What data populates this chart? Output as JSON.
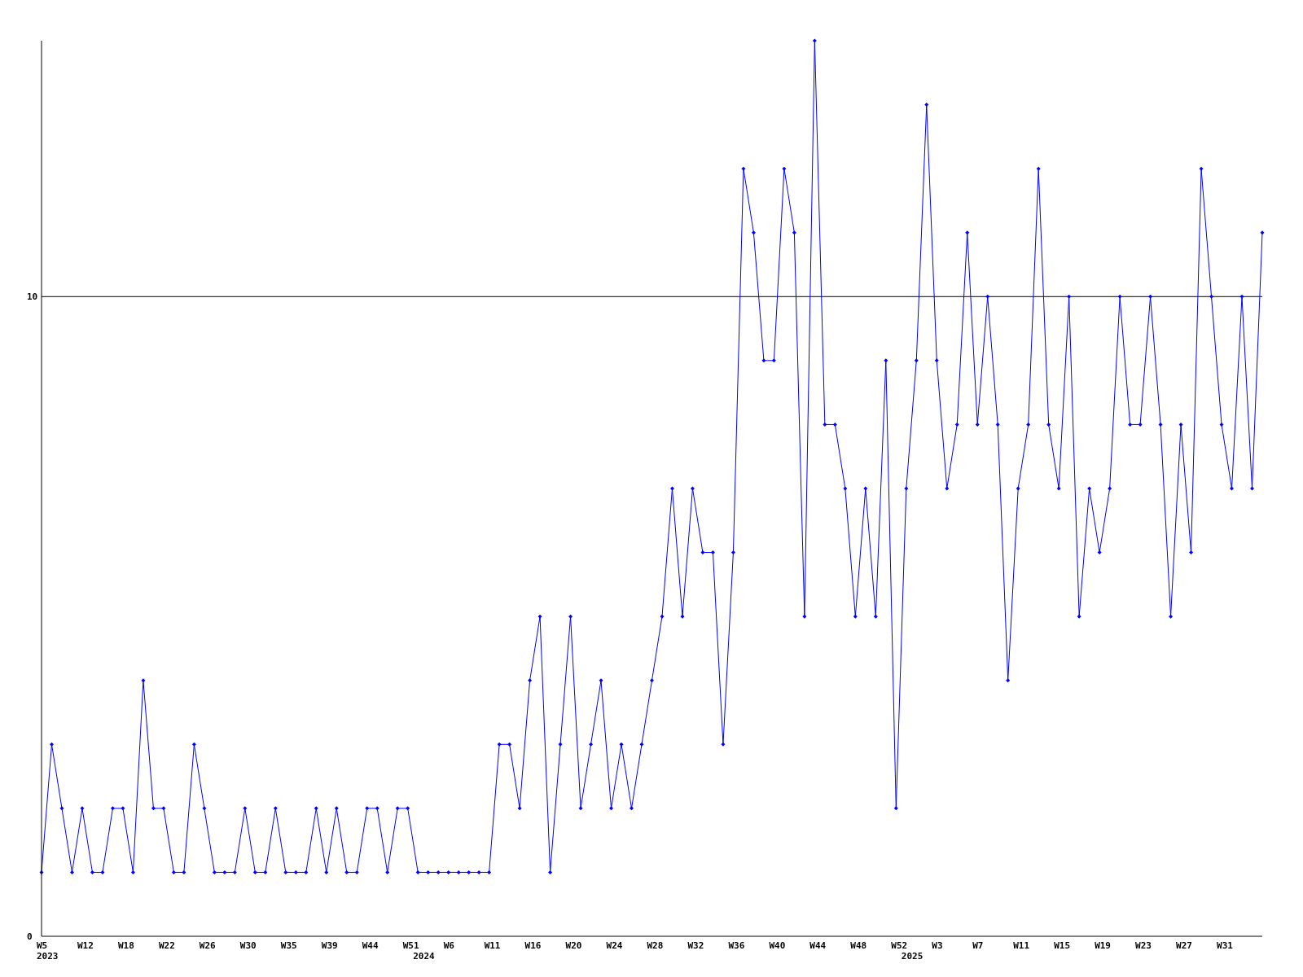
{
  "chart_data": {
    "type": "line",
    "categories": [
      "W5\n2023",
      null,
      null,
      null,
      "W12",
      null,
      null,
      null,
      "W18",
      null,
      null,
      null,
      "W22",
      null,
      null,
      null,
      "W26",
      null,
      null,
      null,
      "W30",
      null,
      null,
      null,
      "W35",
      null,
      null,
      null,
      "W39",
      null,
      null,
      null,
      "W44",
      null,
      null,
      null,
      "W51",
      "\n2024",
      null,
      null,
      "W6",
      null,
      null,
      null,
      "W11",
      null,
      null,
      null,
      "W16",
      null,
      null,
      null,
      "W20",
      null,
      null,
      null,
      "W24",
      null,
      null,
      null,
      "W28",
      null,
      null,
      null,
      "W32",
      null,
      null,
      null,
      "W36",
      null,
      null,
      null,
      "W40",
      null,
      null,
      null,
      "W44",
      null,
      null,
      null,
      "W48",
      null,
      null,
      null,
      "W52",
      "\n2025",
      null,
      null,
      "W3",
      null,
      null,
      null,
      "W7",
      null,
      null,
      null,
      "W11",
      null,
      null,
      null,
      "W15",
      null,
      null,
      null,
      "W19",
      null,
      null,
      null,
      "W23",
      null,
      null,
      null,
      "W27",
      null,
      null,
      null,
      "W31",
      null,
      null,
      null,
      null
    ],
    "series": [
      {
        "color": "#0000ff",
        "values": [
          1,
          3,
          2,
          1,
          2,
          1,
          1,
          2,
          2,
          1,
          4,
          2,
          2,
          1,
          1,
          3,
          2,
          1,
          1,
          1,
          2,
          1,
          1,
          2,
          1,
          1,
          1,
          2,
          1,
          2,
          1,
          1,
          2,
          2,
          1,
          2,
          2,
          1,
          1,
          1,
          1,
          1,
          1,
          1,
          1,
          3,
          3,
          2,
          4,
          5,
          1,
          3,
          5,
          2,
          3,
          4,
          2,
          3,
          2,
          3,
          4,
          5,
          7,
          5,
          7,
          6,
          6,
          3,
          6,
          12,
          11,
          9,
          9,
          12,
          11,
          5,
          14,
          8,
          8,
          7,
          5,
          7,
          5,
          9,
          2,
          7,
          9,
          13,
          9,
          7,
          8,
          11,
          8,
          10,
          8,
          4,
          7,
          8,
          12,
          8,
          7,
          10,
          5,
          7,
          6,
          7,
          10,
          8,
          8,
          10,
          8,
          5,
          8,
          6,
          12,
          10,
          8,
          7,
          10,
          7,
          11
        ]
      }
    ],
    "ylim": [
      0,
      14
    ],
    "yticks": [
      0,
      10
    ],
    "grid": "y",
    "marker": "diamond",
    "line_style": "solid"
  }
}
